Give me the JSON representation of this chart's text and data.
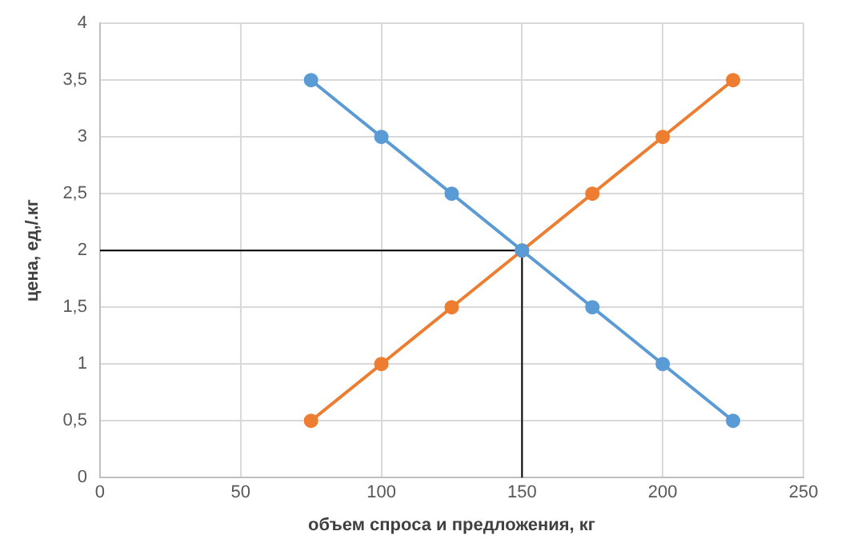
{
  "chart_data": {
    "type": "line",
    "xlabel": "объем спроса и предложения, кг",
    "ylabel": "цена, ед,/.кг",
    "series": [
      {
        "color": "#5b9bd5",
        "x": [
          75,
          100,
          125,
          150,
          175,
          200,
          225
        ],
        "values": [
          3.5,
          3,
          2.5,
          2,
          1.5,
          1,
          0.5
        ]
      },
      {
        "color": "#ed7d31",
        "x": [
          75,
          100,
          125,
          150,
          175,
          200,
          225
        ],
        "values": [
          0.5,
          1,
          1.5,
          2,
          2.5,
          3,
          3.5
        ]
      },
      {
        "color": "#000000",
        "marker": "none",
        "x": [
          0,
          150,
          150
        ],
        "values": [
          2,
          2,
          0
        ]
      }
    ],
    "xlim": [
      0,
      250
    ],
    "xticks": [
      0,
      50,
      100,
      150,
      200,
      250
    ],
    "ylim": [
      0,
      4
    ],
    "yticks": [
      0,
      {
        "value": 0.5,
        "label": "0,5"
      },
      1,
      {
        "value": 1.5,
        "label": "1,5"
      },
      2,
      {
        "value": 2.5,
        "label": "2,5"
      },
      3,
      {
        "value": 3.5,
        "label": "3,5"
      },
      4
    ],
    "grid": true,
    "marker": "circle",
    "legend": false
  }
}
